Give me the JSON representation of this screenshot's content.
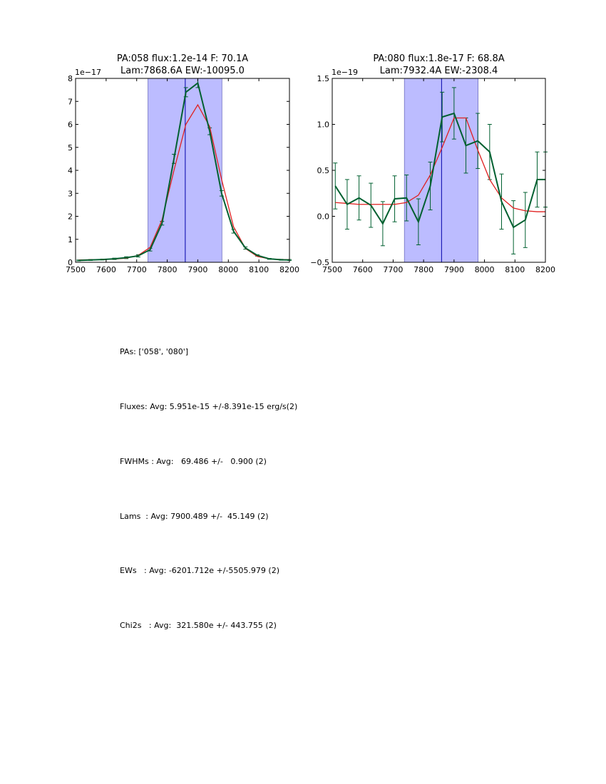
{
  "chart_data": [
    {
      "type": "line",
      "title_line1": "PA:058 flux:1.2e-14 F: 70.1A",
      "title_line2": "Lam:7868.6A EW:-10095.0",
      "xlabel": "",
      "ylabel": "",
      "xlim": [
        7500,
        8200
      ],
      "ylim": [
        0,
        8
      ],
      "y_scale_label": "1e−17",
      "xticks": [
        7500,
        7600,
        7700,
        7800,
        7900,
        8000,
        8100,
        8200
      ],
      "yticks": [
        0,
        1,
        2,
        3,
        4,
        5,
        6,
        7,
        8
      ],
      "ytick_labels": [
        "0",
        "1",
        "2",
        "3",
        "4",
        "5",
        "6",
        "7",
        "8"
      ],
      "shaded_band": [
        7737,
        7979
      ],
      "center_line": 7859,
      "colors": {
        "data": "#006030",
        "model": "#e02020",
        "band": "#bcbcff",
        "center": "#0000aa"
      },
      "x": [
        7510,
        7549,
        7588,
        7627,
        7666,
        7705,
        7744,
        7783,
        7822,
        7861,
        7900,
        7939,
        7978,
        8017,
        8056,
        8095,
        8134,
        8173,
        8200
      ],
      "series": [
        {
          "values": [
            0.08,
            0.1,
            0.12,
            0.15,
            0.2,
            0.28,
            0.55,
            1.7,
            4.5,
            7.4,
            7.8,
            5.7,
            3.0,
            1.35,
            0.62,
            0.3,
            0.15,
            0.11,
            0.1
          ],
          "errors": [
            0.02,
            0.02,
            0.02,
            0.03,
            0.04,
            0.05,
            0.06,
            0.08,
            0.2,
            0.2,
            0.2,
            0.15,
            0.12,
            0.08,
            0.05,
            0.03,
            0.02,
            0.02,
            0.02
          ]
        },
        {
          "values": [
            0.1,
            0.11,
            0.12,
            0.14,
            0.18,
            0.3,
            0.65,
            1.85,
            4.0,
            6.0,
            6.85,
            5.9,
            3.6,
            1.55,
            0.6,
            0.25,
            0.15,
            0.12,
            0.11
          ]
        }
      ]
    },
    {
      "type": "line",
      "title_line1": "PA:080 flux:1.8e-17 F: 68.8A",
      "title_line2": "Lam:7932.4A EW:-2308.4",
      "xlabel": "",
      "ylabel": "",
      "xlim": [
        7500,
        8200
      ],
      "ylim": [
        -0.5,
        1.5
      ],
      "y_scale_label": "1e−19",
      "xticks": [
        7500,
        7600,
        7700,
        7800,
        7900,
        8000,
        8100,
        8200
      ],
      "yticks": [
        -0.5,
        0.0,
        0.5,
        1.0,
        1.5
      ],
      "ytick_labels": [
        "−0.5",
        "0.0",
        "0.5",
        "1.0",
        "1.5"
      ],
      "shaded_band": [
        7737,
        7979
      ],
      "center_line": 7859,
      "colors": {
        "data": "#006030",
        "model": "#e02020",
        "band": "#bcbcff",
        "center": "#0000aa"
      },
      "x": [
        7510,
        7549,
        7588,
        7627,
        7666,
        7705,
        7744,
        7783,
        7822,
        7861,
        7900,
        7939,
        7978,
        8017,
        8056,
        8095,
        8134,
        8173,
        8200
      ],
      "series": [
        {
          "values": [
            0.33,
            0.13,
            0.2,
            0.12,
            -0.08,
            0.19,
            0.2,
            -0.06,
            0.33,
            1.08,
            1.12,
            0.77,
            0.82,
            0.7,
            0.16,
            -0.12,
            -0.04,
            0.4,
            0.4
          ],
          "errors": [
            0.25,
            0.27,
            0.24,
            0.24,
            0.24,
            0.25,
            0.25,
            0.25,
            0.26,
            0.27,
            0.28,
            0.3,
            0.3,
            0.3,
            0.3,
            0.29,
            0.3,
            0.3,
            0.3
          ]
        },
        {
          "values": [
            0.15,
            0.14,
            0.13,
            0.13,
            0.13,
            0.13,
            0.15,
            0.23,
            0.45,
            0.75,
            1.07,
            1.07,
            0.72,
            0.4,
            0.2,
            0.09,
            0.06,
            0.05,
            0.05
          ]
        }
      ]
    }
  ],
  "stats": {
    "pas": "PAs: ['058', '080']",
    "fluxes": "Fluxes: Avg: 5.951e-15 +/-8.391e-15 erg/s(2)",
    "fwhms": "FWHMs : Avg:   69.486 +/-   0.900 (2)",
    "lams": "Lams  : Avg: 7900.489 +/-  45.149 (2)",
    "ews": "EWs   : Avg: -6201.712e +/-5505.979 (2)",
    "chi2s": "Chi2s   : Avg:  321.580e +/- 443.755 (2)"
  }
}
